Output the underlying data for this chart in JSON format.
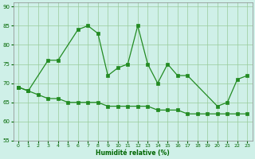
{
  "series1_x": [
    0,
    1,
    3,
    4,
    6,
    7,
    8,
    9,
    10,
    11,
    12,
    13,
    14,
    15,
    16,
    17,
    20,
    21,
    22,
    23
  ],
  "series1_y": [
    69,
    68,
    76,
    76,
    84,
    85,
    83,
    72,
    74,
    75,
    85,
    75,
    70,
    75,
    72,
    72,
    64,
    65,
    71,
    72
  ],
  "series2_x": [
    0,
    1,
    2,
    3,
    4,
    5,
    6,
    7,
    8,
    9,
    10,
    11,
    12,
    13,
    14,
    15,
    16,
    17,
    18,
    19,
    20,
    21,
    22,
    23
  ],
  "series2_y": [
    69,
    68,
    67,
    66,
    66,
    65,
    65,
    65,
    65,
    64,
    64,
    64,
    64,
    64,
    63,
    63,
    63,
    62,
    62,
    62,
    62,
    62,
    62,
    62
  ],
  "bg_color": "#cff0e8",
  "line_color": "#228B22",
  "grid_color": "#99cc99",
  "xlabel": "Humidité relative (%)",
  "ylim": [
    55,
    91
  ],
  "xlim": [
    -0.5,
    23.5
  ],
  "yticks": [
    55,
    60,
    65,
    70,
    75,
    80,
    85,
    90
  ],
  "xticks": [
    0,
    1,
    2,
    3,
    4,
    5,
    6,
    7,
    8,
    9,
    10,
    11,
    12,
    13,
    14,
    15,
    16,
    17,
    18,
    19,
    20,
    21,
    22,
    23
  ],
  "xlabel_color": "#006600",
  "tick_color": "#006600",
  "spine_color": "#888888"
}
